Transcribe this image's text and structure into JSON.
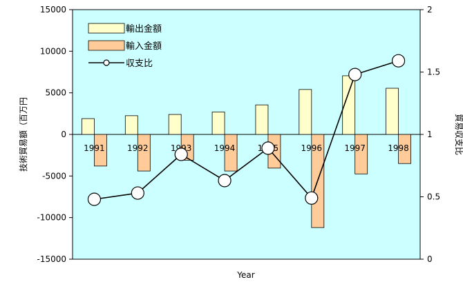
{
  "chart_data": {
    "type": "bar",
    "title": "",
    "xlabel": "Year",
    "ylabel": "技術貿易額（百万円",
    "y2label": "貿易収支比",
    "categories": [
      "1991",
      "1992",
      "1993",
      "1994",
      "1995",
      "1996",
      "1997",
      "1998"
    ],
    "ylim": [
      -15000,
      15000
    ],
    "yticks": [
      15000,
      10000,
      5000,
      0,
      -5000,
      -10000,
      -15000
    ],
    "y2lim": [
      0,
      2
    ],
    "y2ticks": [
      2,
      1.5,
      1,
      0.5,
      0
    ],
    "y2tick_labels": [
      "2",
      "1.5",
      "1",
      "0.5",
      "0"
    ],
    "legend_position": "top-left",
    "plot_background": "#ccffff",
    "series": [
      {
        "name": "輸出金額",
        "kind": "bar",
        "axis": "left",
        "color": "#ffffcc",
        "values": [
          1900,
          2250,
          2400,
          2700,
          3550,
          5400,
          7050,
          5550
        ]
      },
      {
        "name": "輸入金額",
        "kind": "bar",
        "axis": "left",
        "color": "#ffcc99",
        "values": [
          -3800,
          -4400,
          -3100,
          -4400,
          -4050,
          -11200,
          -4750,
          -3500
        ]
      },
      {
        "name": "収支比",
        "kind": "line",
        "axis": "right",
        "color": "#000000",
        "values": [
          0.48,
          0.53,
          0.84,
          0.63,
          0.89,
          0.49,
          1.48,
          1.59
        ]
      }
    ]
  }
}
